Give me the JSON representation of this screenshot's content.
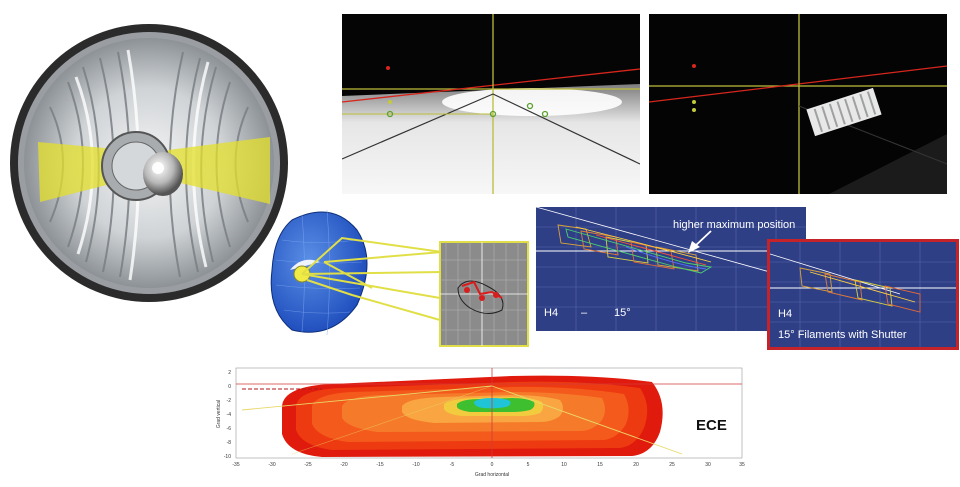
{
  "panels": {
    "h4_15": {
      "annotation": "higher maximum position",
      "left_label": "H4",
      "dash": "–",
      "angle": "15°"
    },
    "shutter": {
      "label": "H4",
      "caption": "15° Filaments with Shutter"
    }
  },
  "isolux": {
    "standard": "ECE",
    "xlabel": "Grad horizontal",
    "ylabel": "Grad vertical",
    "x_ticks": [
      "-35",
      "-30",
      "-25",
      "-20",
      "-15",
      "-10",
      "-5",
      "0",
      "5",
      "10",
      "15",
      "20",
      "25",
      "30",
      "35"
    ],
    "y_ticks": [
      "2",
      "0",
      "-2",
      "-4",
      "-6",
      "-8",
      "-10"
    ],
    "zone_colors": [
      "#e01a0c",
      "#ee3a10",
      "#f45a1c",
      "#f57b2a",
      "#f9a541",
      "#f2cc3e",
      "#3dbf2f",
      "#1fc4d6"
    ]
  }
}
